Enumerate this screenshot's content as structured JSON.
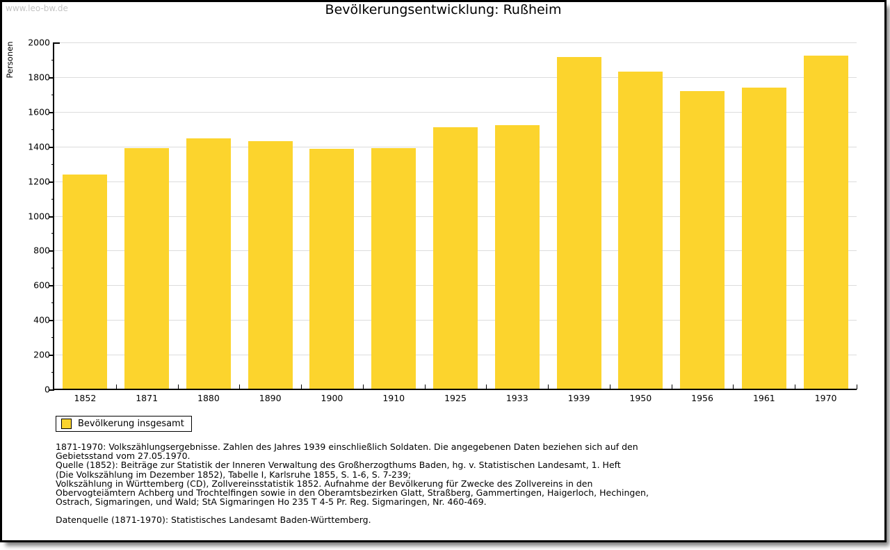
{
  "watermark": "www.leo-bw.de",
  "header": {
    "title": "Bevölkerungsentwicklung: Rußheim"
  },
  "chart_data": {
    "type": "bar",
    "title": "Bevölkerungsentwicklung: Rußheim",
    "xlabel": "",
    "ylabel": "Personen",
    "categories": [
      "1852",
      "1871",
      "1880",
      "1890",
      "1900",
      "1910",
      "1925",
      "1933",
      "1939",
      "1950",
      "1956",
      "1961",
      "1970"
    ],
    "series": [
      {
        "name": "Bevölkerung insgesamt",
        "values": [
          1240,
          1390,
          1445,
          1430,
          1385,
          1390,
          1510,
          1525,
          1915,
          1830,
          1720,
          1740,
          1925
        ]
      }
    ],
    "ylim": [
      0,
      2000
    ],
    "y_major_step": 200,
    "y_minor_step": 100,
    "grid": "horizontal-major-only",
    "legend_position": "below-left"
  },
  "legend": {
    "items": [
      {
        "label": "Bevölkerung insgesamt",
        "color": "#fcd42d"
      }
    ]
  },
  "footnotes": {
    "lines": [
      "1871-1970: Volkszählungsergebnisse. Zahlen des Jahres 1939 einschließlich Soldaten. Die angegebenen Daten beziehen sich auf den",
      "Gebietsstand vom 27.05.1970.",
      "Quelle (1852): Beiträge zur Statistik der Inneren Verwaltung des Großherzogthums Baden, hg. v. Statistischen Landesamt, 1. Heft",
      "(Die Volkszählung im Dezember 1852), Tabelle I, Karlsruhe 1855, S. 1-6, S. 7-239;",
      "Volkszählung in Württemberg (CD), Zollvereinsstatistik 1852. Aufnahme der Bevölkerung für Zwecke des Zollvereins in den",
      "Obervogteiämtern Achberg und Trochtelfingen sowie in den Oberamtsbezirken Glatt, Straßberg, Gammertingen, Haigerloch, Hechingen,",
      "Ostrach, Sigmaringen, und Wald; StA Sigmaringen Ho 235 T 4-5 Pr. Reg. Sigmaringen, Nr. 460-469."
    ],
    "datasource": "Datenquelle (1871-1970): Statistisches Landesamt Baden-Württemberg."
  },
  "colors": {
    "bar": "#fcd42d",
    "grid": "#dcdcdc",
    "axis": "#000000",
    "watermark": "#c4c4c4",
    "background": "#ffffff"
  }
}
